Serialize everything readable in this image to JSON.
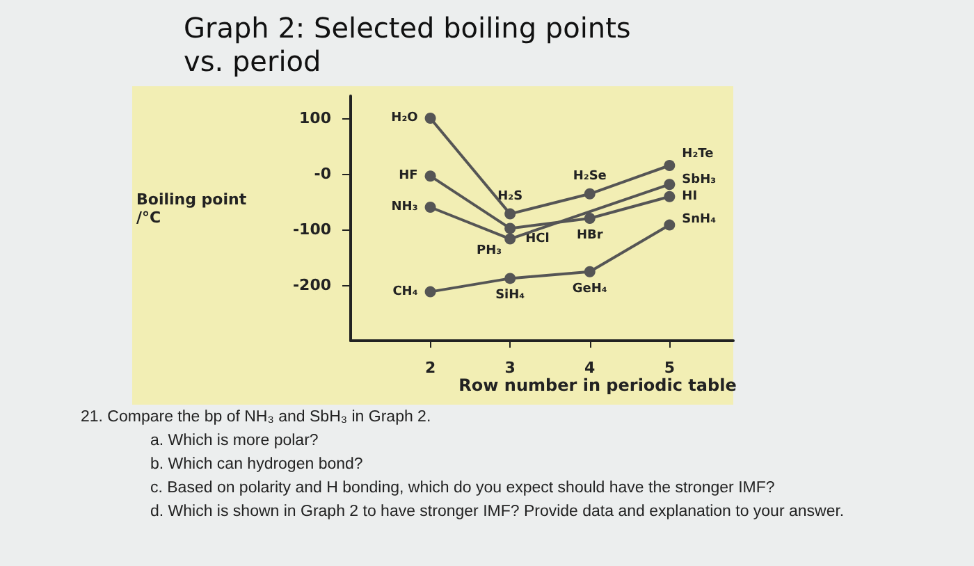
{
  "chart_data": {
    "type": "line",
    "title": "Graph 2: Selected boiling points vs. period",
    "xlabel": "Row number in periodic table",
    "ylabel": "Boiling point /°C",
    "x": [
      2,
      3,
      4,
      5
    ],
    "xlim": [
      1,
      5.8
    ],
    "xticks": [
      2,
      3,
      4,
      5
    ],
    "ylim": [
      -300,
      140
    ],
    "yticks": [
      100,
      {
        "value": 0,
        "label": "-0"
      },
      -100,
      -200
    ],
    "marker": "circle",
    "grid": false,
    "series": [
      {
        "color": "#555555",
        "values": [
          100,
          -72,
          -36,
          15
        ]
      },
      {
        "color": "#555555",
        "values": [
          -4,
          -98,
          -80,
          -41
        ]
      },
      {
        "color": "#555555",
        "values": [
          -60,
          -117,
          null,
          -19
        ]
      },
      {
        "color": "#555555",
        "values": [
          -212,
          -188,
          -176,
          -92
        ]
      }
    ],
    "annotations": [
      {
        "text": "H₂O",
        "x": 2,
        "y": 100
      },
      {
        "text": "H₂S",
        "x": 3,
        "y": -72
      },
      {
        "text": "H₂Se",
        "x": 4,
        "y": -36
      },
      {
        "text": "H₂Te",
        "x": 5,
        "y": 15
      },
      {
        "text": "HF",
        "x": 2,
        "y": -4
      },
      {
        "text": "HCl",
        "x": 3,
        "y": -98
      },
      {
        "text": "HBr",
        "x": 4,
        "y": -80
      },
      {
        "text": "HI",
        "x": 5,
        "y": -41
      },
      {
        "text": "NH₃",
        "x": 2,
        "y": -60
      },
      {
        "text": "PH₃",
        "x": 3,
        "y": -117
      },
      {
        "text": "SbH₃",
        "x": 5,
        "y": -19
      },
      {
        "text": "CH₄",
        "x": 2,
        "y": -212
      },
      {
        "text": "SiH₄",
        "x": 3,
        "y": -188
      },
      {
        "text": "GeH₄",
        "x": 4,
        "y": -176
      },
      {
        "text": "SnH₄",
        "x": 5,
        "y": -92
      },
      "21. Compare the bp of NH₃ and SbH₃ in Graph 2.",
      "a.  Which is more polar?",
      "b.  Which can hydrogen bond?",
      "c.  Based on polarity and H bonding, which do you expect should have the stronger IMF?",
      "d.  Which is shown in Graph 2 to have stronger IMF? Provide data and explanation to your answer."
    ]
  }
}
